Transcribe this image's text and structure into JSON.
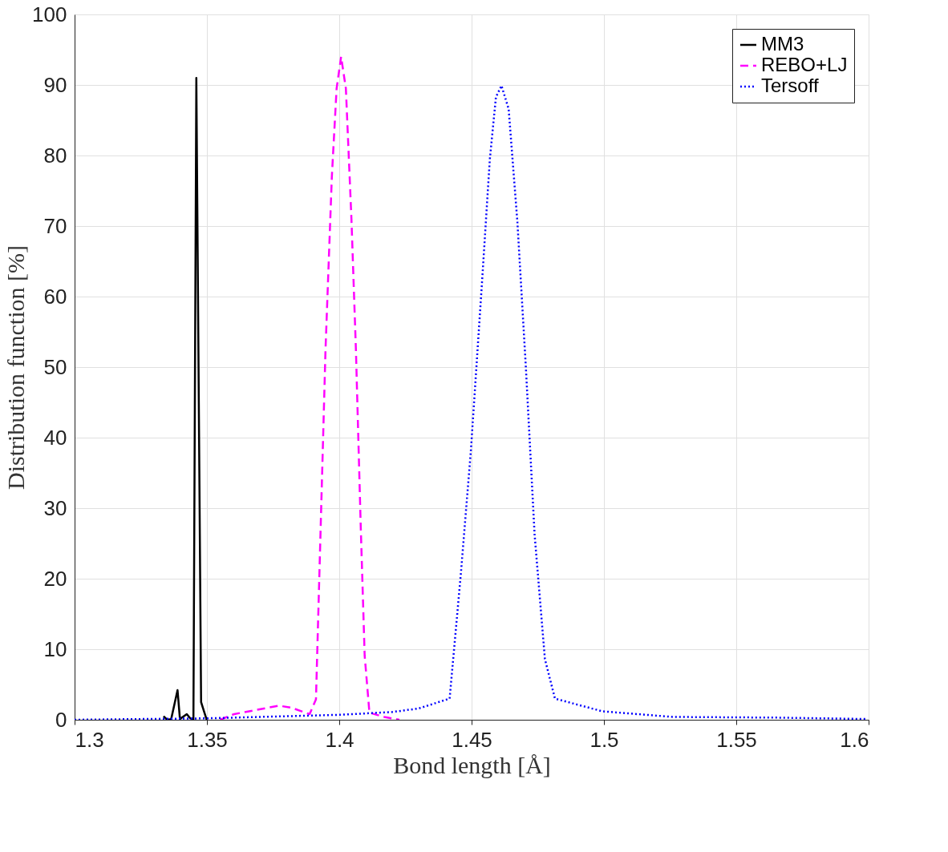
{
  "chart_data": {
    "type": "line",
    "xlabel": "Bond length [Å]",
    "ylabel": "Distribution function [%]",
    "xlim": [
      1.3,
      1.6
    ],
    "ylim": [
      0,
      100
    ],
    "xticks": [
      1.3,
      1.35,
      1.4,
      1.45,
      1.5,
      1.55,
      1.6
    ],
    "yticks": [
      0,
      10,
      20,
      30,
      40,
      50,
      60,
      70,
      80,
      90,
      100
    ],
    "grid": true,
    "legend": "top right",
    "series": [
      {
        "name": "MM3",
        "color": "#000000",
        "line_style": "solid",
        "x": [
          1.3336,
          1.335,
          1.3365,
          1.3389,
          1.3398,
          1.3424,
          1.3437,
          1.3449,
          1.346,
          1.3478,
          1.3499
        ],
        "values": [
          0.5,
          0,
          0.1,
          4.2,
          0.1,
          0.8,
          0.2,
          0.1,
          91,
          2.5,
          0
        ]
      },
      {
        "name": "REBO+LJ",
        "color": "#ff00ff",
        "line_style": "dashed",
        "x": [
          1.355,
          1.3603,
          1.3772,
          1.382,
          1.3888,
          1.3912,
          1.393,
          1.3948,
          1.3972,
          1.399,
          1.4007,
          1.4025,
          1.4046,
          1.4063,
          1.4081,
          1.4096,
          1.4114,
          1.417,
          1.4227
        ],
        "values": [
          0,
          0.8,
          2.0,
          1.7,
          0.8,
          2.9,
          27.6,
          52.4,
          77,
          89.5,
          94,
          89.5,
          71,
          52.4,
          27.6,
          9.1,
          1,
          0.4,
          0
        ]
      },
      {
        "name": "Tersoff",
        "color": "#0000ff",
        "line_style": "dotted",
        "x": [
          1.3,
          1.35,
          1.4,
          1.42,
          1.43,
          1.4417,
          1.4459,
          1.4497,
          1.4539,
          1.4569,
          1.4592,
          1.4613,
          1.464,
          1.4673,
          1.4705,
          1.4738,
          1.4777,
          1.4815,
          1.4994,
          1.526,
          1.5656,
          1.5995
        ],
        "values": [
          0,
          0.2,
          0.7,
          1.1,
          1.6,
          3.0,
          20.5,
          38,
          61.8,
          79.5,
          88.3,
          89.9,
          86.6,
          70.6,
          50,
          26.3,
          8.6,
          3.0,
          1.2,
          0.4,
          0.3,
          0.1
        ]
      }
    ]
  }
}
